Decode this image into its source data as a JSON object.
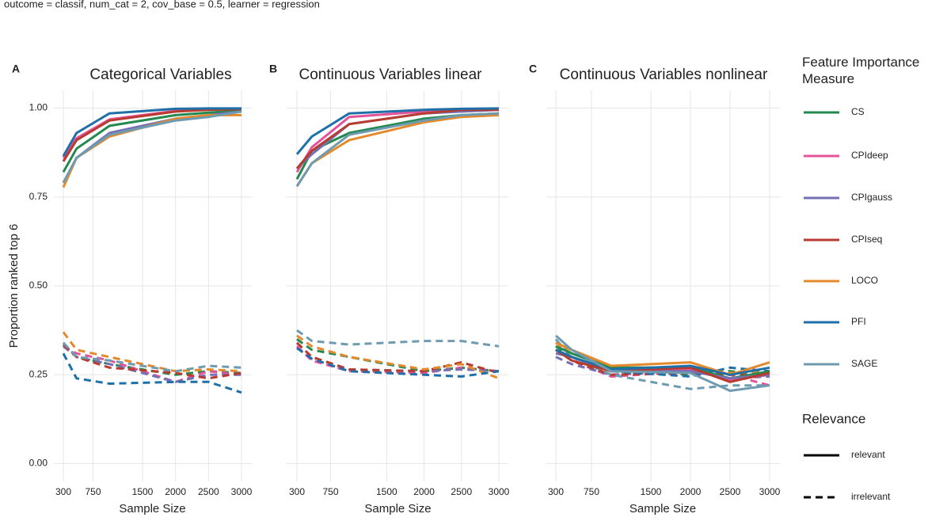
{
  "subtitle": "outcome = classif, num_cat = 2, cov_base = 0.5, learner = regression",
  "y_label": "Proportion ranked top 6",
  "legend": {
    "title": "Feature Importance Measure"
  },
  "relevance": {
    "title": "Relevance",
    "levels": [
      "relevant",
      "irrelevant"
    ]
  },
  "chart_data": [
    {
      "type": "line",
      "tag": "A",
      "title": "Categorical Variables",
      "x_label": "Sample Size",
      "x": [
        300,
        500,
        1000,
        2000,
        2500,
        3000
      ],
      "xlim": [
        300,
        3000
      ],
      "xticks": [
        300,
        750,
        1500,
        2000,
        2500,
        3000
      ],
      "ylim": [
        -0.05,
        1.05
      ],
      "yticks": [
        {
          "value": 0,
          "label": "0.00"
        },
        {
          "value": 0.25,
          "label": "0.25"
        },
        {
          "value": 0.5,
          "label": "0.50"
        },
        {
          "value": 0.75,
          "label": "0.75"
        },
        {
          "value": 1,
          "label": "1.00"
        }
      ],
      "grid": true,
      "series": [
        {
          "name": "CS",
          "color": "#23894f",
          "values": [
            0.82,
            0.886,
            0.95,
            0.98,
            0.987,
            0.993
          ],
          "values_irrelevant": [
            0.34,
            0.3,
            0.28,
            0.25,
            0.26,
            0.255
          ]
        },
        {
          "name": "CPIdeep",
          "color": "#e5549b",
          "values": [
            0.86,
            0.915,
            0.968,
            0.992,
            0.996,
            0.998
          ],
          "values_irrelevant": [
            0.33,
            0.31,
            0.29,
            0.23,
            0.26,
            0.25
          ]
        },
        {
          "name": "CPIgauss",
          "color": "#7570b3",
          "values": [
            0.79,
            0.86,
            0.93,
            0.97,
            0.98,
            0.99
          ],
          "values_irrelevant": [
            0.33,
            0.3,
            0.28,
            0.23,
            0.25,
            0.25
          ]
        },
        {
          "name": "CPIseq",
          "color": "#b83b2f",
          "values": [
            0.85,
            0.91,
            0.965,
            0.99,
            0.995,
            0.997
          ],
          "values_irrelevant": [
            0.335,
            0.3,
            0.27,
            0.255,
            0.24,
            0.255
          ]
        },
        {
          "name": "LOCO",
          "color": "#e58a2c",
          "values": [
            0.777,
            0.86,
            0.92,
            0.97,
            0.98,
            0.98
          ],
          "values_irrelevant": [
            0.37,
            0.32,
            0.3,
            0.26,
            0.265,
            0.26
          ]
        },
        {
          "name": "PFI",
          "color": "#1f70a9",
          "values": [
            0.865,
            0.93,
            0.985,
            0.998,
            0.999,
            0.999
          ],
          "values_irrelevant": [
            0.31,
            0.24,
            0.225,
            0.23,
            0.23,
            0.2
          ]
        },
        {
          "name": "SAGE",
          "color": "#6f9bb0",
          "values": [
            0.79,
            0.86,
            0.925,
            0.965,
            0.975,
            0.99
          ],
          "values_irrelevant": [
            0.34,
            0.3,
            0.29,
            0.26,
            0.275,
            0.27
          ]
        }
      ]
    },
    {
      "type": "line",
      "tag": "B",
      "title": "Continuous Variables linear",
      "x_label": "Sample Size",
      "x": [
        300,
        500,
        1000,
        2000,
        2500,
        3000
      ],
      "xlim": [
        300,
        3000
      ],
      "xticks": [
        300,
        750,
        1500,
        2000,
        2500,
        3000
      ],
      "ylim": [
        -0.05,
        1.05
      ],
      "yticks": [
        0,
        0.25,
        0.5,
        0.75,
        1
      ],
      "grid": true,
      "series": [
        {
          "name": "CS",
          "color": "#23894f",
          "values": [
            0.8,
            0.88,
            0.93,
            0.97,
            0.98,
            0.985
          ],
          "values_irrelevant": [
            0.35,
            0.32,
            0.3,
            0.26,
            0.27,
            0.26
          ]
        },
        {
          "name": "CPIdeep",
          "color": "#e5549b",
          "values": [
            0.82,
            0.89,
            0.975,
            0.99,
            0.995,
            0.997
          ],
          "values_irrelevant": [
            0.33,
            0.29,
            0.26,
            0.255,
            0.27,
            0.26
          ]
        },
        {
          "name": "CPIgauss",
          "color": "#7570b3",
          "values": [
            0.83,
            0.87,
            0.955,
            0.985,
            0.99,
            0.995
          ],
          "values_irrelevant": [
            0.34,
            0.3,
            0.265,
            0.26,
            0.265,
            0.26
          ]
        },
        {
          "name": "CPIseq",
          "color": "#b83b2f",
          "values": [
            0.83,
            0.88,
            0.955,
            0.985,
            0.995,
            0.995
          ],
          "values_irrelevant": [
            0.34,
            0.3,
            0.265,
            0.26,
            0.285,
            0.255
          ]
        },
        {
          "name": "LOCO",
          "color": "#e58a2c",
          "values": [
            0.78,
            0.845,
            0.91,
            0.96,
            0.975,
            0.98
          ],
          "values_irrelevant": [
            0.36,
            0.33,
            0.3,
            0.265,
            0.28,
            0.24
          ]
        },
        {
          "name": "PFI",
          "color": "#1f70a9",
          "values": [
            0.87,
            0.92,
            0.985,
            0.995,
            0.998,
            0.999
          ],
          "values_irrelevant": [
            0.325,
            0.295,
            0.26,
            0.25,
            0.245,
            0.26
          ]
        },
        {
          "name": "SAGE",
          "color": "#6f9bb0",
          "values": [
            0.78,
            0.845,
            0.925,
            0.965,
            0.98,
            0.985
          ],
          "values_irrelevant": [
            0.375,
            0.345,
            0.335,
            0.345,
            0.345,
            0.33
          ]
        }
      ]
    },
    {
      "type": "line",
      "tag": "C",
      "title": "Continuous Variables nonlinear",
      "x_label": "Sample Size",
      "x": [
        300,
        500,
        1000,
        2000,
        2500,
        3000
      ],
      "xlim": [
        300,
        3000
      ],
      "xticks": [
        300,
        750,
        1500,
        2000,
        2500,
        3000
      ],
      "ylim": [
        -0.05,
        1.05
      ],
      "yticks": [
        0,
        0.25,
        0.5,
        0.75,
        1
      ],
      "grid": true,
      "series": [
        {
          "name": "CS",
          "color": "#23894f",
          "values": [
            0.33,
            0.31,
            0.27,
            0.27,
            0.24,
            0.26
          ],
          "values_irrelevant": [
            0.33,
            0.3,
            0.26,
            0.25,
            0.26,
            0.25
          ]
        },
        {
          "name": "CPIdeep",
          "color": "#e5549b",
          "values": [
            0.32,
            0.3,
            0.26,
            0.265,
            0.235,
            0.25
          ],
          "values_irrelevant": [
            0.32,
            0.29,
            0.245,
            0.26,
            0.25,
            0.22
          ]
        },
        {
          "name": "CPIgauss",
          "color": "#7570b3",
          "values": [
            0.31,
            0.3,
            0.26,
            0.26,
            0.24,
            0.25
          ],
          "values_irrelevant": [
            0.3,
            0.28,
            0.25,
            0.26,
            0.24,
            0.245
          ]
        },
        {
          "name": "CPIseq",
          "color": "#b83b2f",
          "values": [
            0.32,
            0.29,
            0.26,
            0.27,
            0.23,
            0.255
          ],
          "values_irrelevant": [
            0.32,
            0.29,
            0.25,
            0.255,
            0.25,
            0.25
          ]
        },
        {
          "name": "LOCO",
          "color": "#e58a2c",
          "values": [
            0.34,
            0.32,
            0.275,
            0.285,
            0.25,
            0.285
          ],
          "values_irrelevant": [
            0.34,
            0.31,
            0.27,
            0.27,
            0.255,
            0.26
          ]
        },
        {
          "name": "PFI",
          "color": "#1f70a9",
          "values": [
            0.32,
            0.3,
            0.265,
            0.275,
            0.25,
            0.27
          ],
          "values_irrelevant": [
            0.32,
            0.3,
            0.26,
            0.245,
            0.27,
            0.26
          ]
        },
        {
          "name": "SAGE",
          "color": "#6f9bb0",
          "values": [
            0.36,
            0.32,
            0.26,
            0.255,
            0.205,
            0.22
          ],
          "values_irrelevant": [
            0.35,
            0.3,
            0.25,
            0.21,
            0.22,
            0.22
          ]
        }
      ]
    }
  ]
}
